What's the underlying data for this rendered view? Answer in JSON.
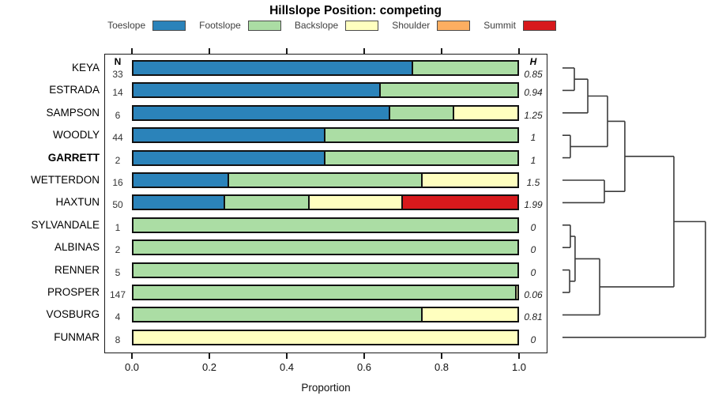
{
  "chart_data": {
    "type": "bar",
    "stacked": true,
    "orientation": "horizontal",
    "title": "Hillslope Position: competing",
    "xlabel": "Proportion",
    "xlim": [
      0,
      1
    ],
    "xticks": [
      "0.0",
      "0.2",
      "0.4",
      "0.6",
      "0.8",
      "1.0"
    ],
    "grid": false,
    "legend_position": "top",
    "n_header": "N",
    "h_header": "H",
    "categories": [
      "Toeslope",
      "Footslope",
      "Backslope",
      "Shoulder",
      "Summit"
    ],
    "colors": [
      "#2B83BA",
      "#ABDDA4",
      "#FFFFBF",
      "#FDAE61",
      "#D7191C"
    ],
    "rows": [
      {
        "name": "KEYA",
        "bold": false,
        "n": "33",
        "h": "0.85",
        "values": [
          0.727,
          0.273,
          0,
          0,
          0
        ]
      },
      {
        "name": "ESTRADA",
        "bold": false,
        "n": "14",
        "h": "0.94",
        "values": [
          0.643,
          0.357,
          0,
          0,
          0
        ]
      },
      {
        "name": "SAMPSON",
        "bold": false,
        "n": "6",
        "h": "1.25",
        "values": [
          0.667,
          0.166,
          0.167,
          0,
          0
        ]
      },
      {
        "name": "WOODLY",
        "bold": false,
        "n": "44",
        "h": "1",
        "values": [
          0.5,
          0.5,
          0,
          0,
          0
        ]
      },
      {
        "name": "GARRETT",
        "bold": true,
        "n": "2",
        "h": "1",
        "values": [
          0.5,
          0.5,
          0,
          0,
          0
        ]
      },
      {
        "name": "WETTERDON",
        "bold": false,
        "n": "16",
        "h": "1.5",
        "values": [
          0.25,
          0.5,
          0.25,
          0,
          0
        ]
      },
      {
        "name": "HAXTUN",
        "bold": false,
        "n": "50",
        "h": "1.99",
        "values": [
          0.24,
          0.22,
          0.24,
          0,
          0.3
        ]
      },
      {
        "name": "SYLVANDALE",
        "bold": false,
        "n": "1",
        "h": "0",
        "values": [
          0,
          1,
          0,
          0,
          0
        ]
      },
      {
        "name": "ALBINAS",
        "bold": false,
        "n": "2",
        "h": "0",
        "values": [
          0,
          1,
          0,
          0,
          0
        ]
      },
      {
        "name": "RENNER",
        "bold": false,
        "n": "5",
        "h": "0",
        "values": [
          0,
          1,
          0,
          0,
          0
        ]
      },
      {
        "name": "PROSPER",
        "bold": false,
        "n": "147",
        "h": "0.06",
        "values": [
          0,
          0.993,
          0.007,
          0,
          0
        ]
      },
      {
        "name": "VOSBURG",
        "bold": false,
        "n": "4",
        "h": "0.81",
        "values": [
          0,
          0.75,
          0.25,
          0,
          0
        ]
      },
      {
        "name": "FUNMAR",
        "bold": false,
        "n": "8",
        "h": "0",
        "values": [
          0,
          0,
          1,
          0,
          0
        ]
      }
    ],
    "dendrogram": {
      "merges": [
        {
          "id": "m1",
          "a": "L0",
          "b": "L1",
          "h": 0.083
        },
        {
          "id": "m2",
          "a": "m1",
          "b": "L2",
          "h": 0.177
        },
        {
          "id": "m3",
          "a": "L3",
          "b": "L4",
          "h": 0.055
        },
        {
          "id": "m4",
          "a": "m2",
          "b": "m3",
          "h": 0.315
        },
        {
          "id": "m5",
          "a": "L5",
          "b": "L6",
          "h": 0.293
        },
        {
          "id": "m6",
          "a": "m4",
          "b": "m5",
          "h": 0.436
        },
        {
          "id": "m7",
          "a": "L7",
          "b": "L8",
          "h": 0.055
        },
        {
          "id": "m8",
          "a": "L9",
          "b": "L10",
          "h": 0.05
        },
        {
          "id": "m9",
          "a": "m7",
          "b": "m8",
          "h": 0.088
        },
        {
          "id": "m10",
          "a": "m9",
          "b": "L11",
          "h": 0.26
        },
        {
          "id": "m11",
          "a": "m6",
          "b": "m10",
          "h": 0.779
        },
        {
          "id": "m12",
          "a": "m11",
          "b": "L12",
          "h": 1.0
        }
      ]
    }
  },
  "legend": [
    {
      "label": "Toeslope",
      "color": "#2B83BA"
    },
    {
      "label": "Footslope",
      "color": "#ABDDA4"
    },
    {
      "label": "Backslope",
      "color": "#FFFFBF"
    },
    {
      "label": "Shoulder",
      "color": "#FDAE61"
    },
    {
      "label": "Summit",
      "color": "#D7191C"
    }
  ]
}
